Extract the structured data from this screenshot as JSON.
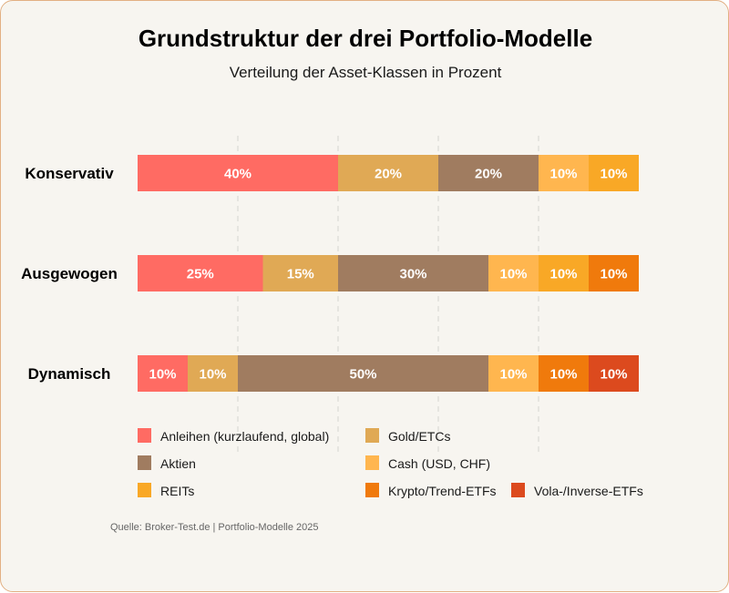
{
  "chart_data": {
    "type": "bar",
    "orientation": "horizontal",
    "stacked": true,
    "title": "Grundstruktur der drei Portfolio-Modelle",
    "subtitle": "Verteilung der Asset-Klassen in Prozent",
    "categories": [
      "Konservativ",
      "Ausgewogen",
      "Dynamisch"
    ],
    "series": [
      {
        "name": "Anleihen (kurzlaufend, global)",
        "color": "#ff6b63",
        "values": [
          40,
          25,
          10
        ]
      },
      {
        "name": "Gold/ETCs",
        "color": "#e0a955",
        "values": [
          20,
          15,
          10
        ]
      },
      {
        "name": "Aktien",
        "color": "#a07c60",
        "values": [
          20,
          30,
          50
        ]
      },
      {
        "name": "Cash (USD, CHF)",
        "color": "#ffb64f",
        "values": [
          10,
          10,
          10
        ]
      },
      {
        "name": "REITs",
        "color": "#f9a826",
        "values": [
          10,
          10,
          0
        ]
      },
      {
        "name": "Krypto/Trend-ETFs",
        "color": "#f07a0c",
        "values": [
          0,
          10,
          10
        ]
      },
      {
        "name": "Vola-/Inverse-ETFs",
        "color": "#dc4a1e",
        "values": [
          0,
          0,
          10
        ]
      }
    ],
    "xlim": [
      0,
      100
    ],
    "value_suffix": "%",
    "grid": true,
    "legend_position": "bottom"
  },
  "footer": {
    "source": "Quelle: Broker-Test.de | Portfolio-Modelle 2025"
  }
}
